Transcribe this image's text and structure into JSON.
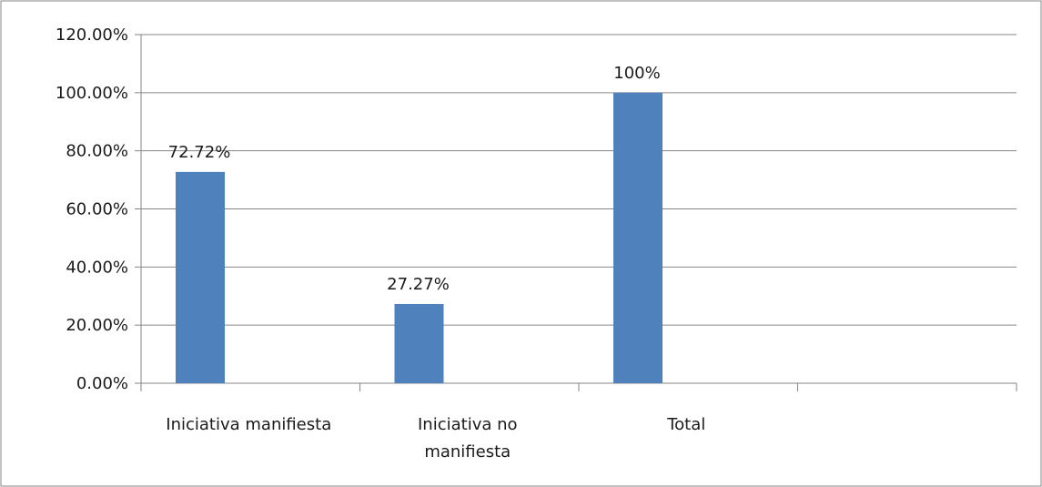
{
  "chart_data": {
    "type": "bar",
    "title": "",
    "xlabel": "",
    "ylabel": "",
    "categories": [
      [
        "Iniciativa manifiesta"
      ],
      [
        "Iniciativa no",
        "manifiesta"
      ],
      [
        "Total"
      ],
      [
        ""
      ]
    ],
    "values": [
      72.72,
      27.27,
      100,
      null
    ],
    "data_labels": [
      "72.72%",
      "27.27%",
      "100%",
      ""
    ],
    "ylim": [
      0,
      120
    ],
    "yticks": [
      0,
      20,
      40,
      60,
      80,
      100,
      120
    ],
    "ytick_labels": [
      "0.00%",
      "20.00%",
      "40.00%",
      "60.00%",
      "80.00%",
      "100.00%",
      "120.00%"
    ],
    "grid": true,
    "legend": "none",
    "colors": {
      "bar": "#4F81BD",
      "grid": "#868686",
      "axis": "#868686",
      "frame": "#868686"
    }
  }
}
